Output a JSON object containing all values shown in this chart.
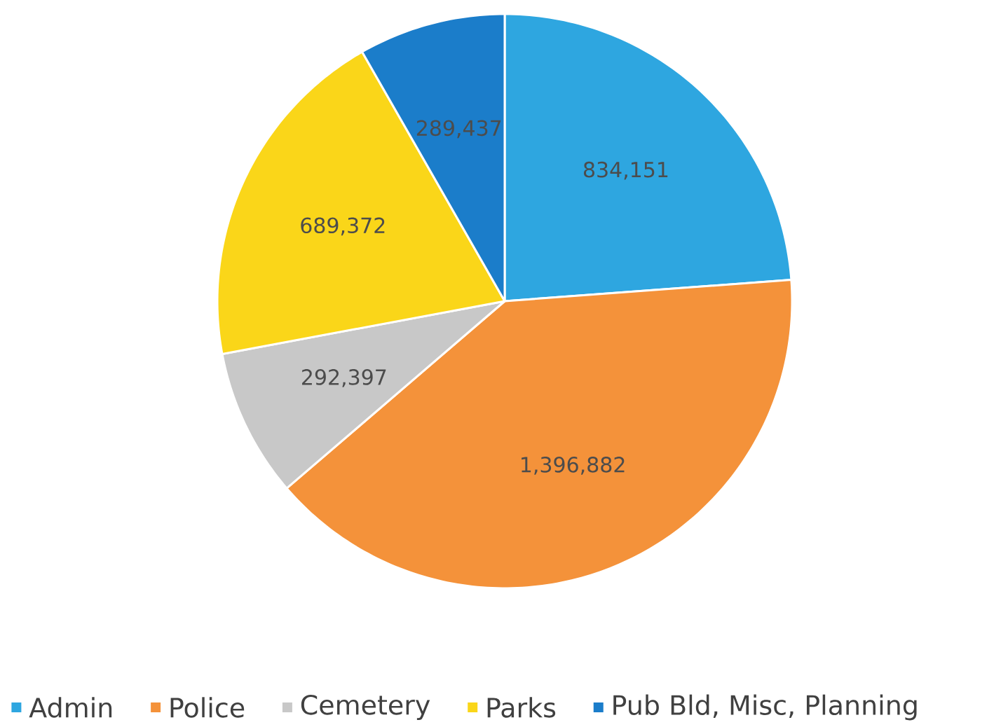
{
  "chart_data": {
    "type": "pie",
    "categories": [
      "Admin",
      "Police",
      "Cemetery",
      "Parks",
      "Pub Bld, Misc, Planning"
    ],
    "values": [
      834151,
      1396882,
      292397,
      689372,
      289437
    ],
    "value_labels": [
      "834,151",
      "1,396,882",
      "292,397",
      "689,372",
      "289,437"
    ],
    "colors": [
      "#2ea6e0",
      "#f4923a",
      "#c8c8c8",
      "#fad619",
      "#1b7dca"
    ],
    "legend": "bottom"
  }
}
